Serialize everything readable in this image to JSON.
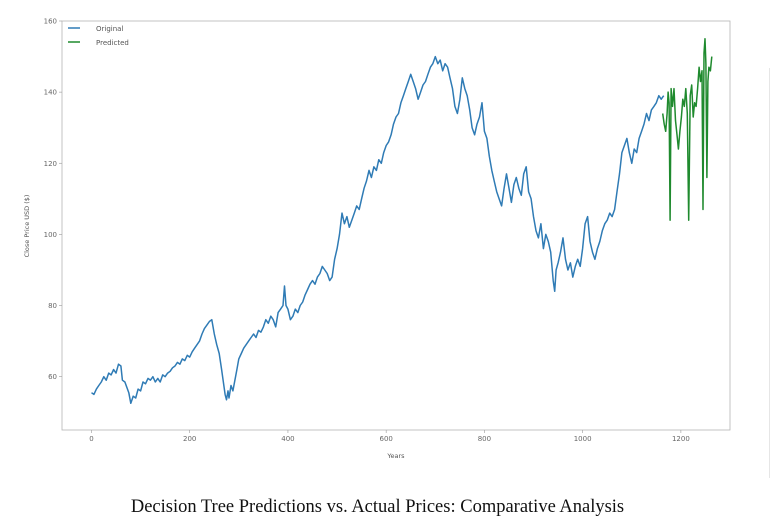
{
  "caption": "Decision Tree Predictions vs. Actual Prices: Comparative Analysis",
  "chart_data": {
    "type": "line",
    "title": "",
    "xlabel": "Years",
    "ylabel": "Close Price USD ($)",
    "xlim": [
      -60,
      1300
    ],
    "ylim": [
      45,
      160
    ],
    "xticks": [
      0,
      200,
      400,
      600,
      800,
      1000,
      1200
    ],
    "yticks": [
      60,
      80,
      100,
      120,
      140,
      160
    ],
    "grid": false,
    "legend_position": "top-left",
    "series": [
      {
        "name": "Original",
        "color": "#2f7bb5",
        "points": [
          [
            0,
            55.5
          ],
          [
            5,
            55.0
          ],
          [
            10,
            56.5
          ],
          [
            15,
            57.5
          ],
          [
            20,
            58.5
          ],
          [
            25,
            60.0
          ],
          [
            30,
            59.0
          ],
          [
            35,
            61.0
          ],
          [
            40,
            60.5
          ],
          [
            45,
            62.0
          ],
          [
            50,
            61.0
          ],
          [
            55,
            63.5
          ],
          [
            60,
            63.0
          ],
          [
            63,
            59.0
          ],
          [
            68,
            58.5
          ],
          [
            72,
            57.0
          ],
          [
            76,
            55.5
          ],
          [
            80,
            52.5
          ],
          [
            85,
            54.5
          ],
          [
            90,
            54.0
          ],
          [
            95,
            56.5
          ],
          [
            100,
            56.0
          ],
          [
            105,
            58.5
          ],
          [
            110,
            58.0
          ],
          [
            115,
            59.5
          ],
          [
            120,
            59.0
          ],
          [
            125,
            60.0
          ],
          [
            130,
            58.5
          ],
          [
            135,
            59.5
          ],
          [
            140,
            58.5
          ],
          [
            145,
            60.5
          ],
          [
            150,
            60.0
          ],
          [
            155,
            61.0
          ],
          [
            160,
            61.5
          ],
          [
            165,
            62.5
          ],
          [
            170,
            63.0
          ],
          [
            175,
            64.0
          ],
          [
            180,
            63.5
          ],
          [
            185,
            65.0
          ],
          [
            190,
            64.5
          ],
          [
            195,
            66.0
          ],
          [
            200,
            65.5
          ],
          [
            205,
            67.0
          ],
          [
            210,
            68.0
          ],
          [
            215,
            69.0
          ],
          [
            220,
            70.0
          ],
          [
            225,
            72.0
          ],
          [
            230,
            73.5
          ],
          [
            235,
            74.5
          ],
          [
            240,
            75.5
          ],
          [
            245,
            76.0
          ],
          [
            250,
            72.0
          ],
          [
            255,
            69.0
          ],
          [
            260,
            66.5
          ],
          [
            265,
            62.0
          ],
          [
            268,
            59.0
          ],
          [
            272,
            55.0
          ],
          [
            275,
            53.5
          ],
          [
            278,
            56.0
          ],
          [
            280,
            54.0
          ],
          [
            284,
            57.5
          ],
          [
            288,
            56.0
          ],
          [
            292,
            59.0
          ],
          [
            296,
            62.0
          ],
          [
            300,
            65.0
          ],
          [
            305,
            66.5
          ],
          [
            310,
            68.0
          ],
          [
            315,
            69.0
          ],
          [
            320,
            70.0
          ],
          [
            325,
            71.0
          ],
          [
            330,
            72.0
          ],
          [
            335,
            71.0
          ],
          [
            340,
            73.0
          ],
          [
            345,
            72.5
          ],
          [
            350,
            74.0
          ],
          [
            355,
            76.0
          ],
          [
            360,
            75.0
          ],
          [
            365,
            77.0
          ],
          [
            370,
            76.0
          ],
          [
            375,
            74.0
          ],
          [
            380,
            78.0
          ],
          [
            385,
            79.0
          ],
          [
            390,
            80.0
          ],
          [
            393,
            85.5
          ],
          [
            396,
            80.0
          ],
          [
            400,
            79.0
          ],
          [
            405,
            76.0
          ],
          [
            410,
            77.0
          ],
          [
            415,
            79.0
          ],
          [
            420,
            78.0
          ],
          [
            425,
            80.0
          ],
          [
            430,
            81.0
          ],
          [
            435,
            83.0
          ],
          [
            440,
            84.5
          ],
          [
            445,
            86.0
          ],
          [
            450,
            87.0
          ],
          [
            455,
            86.0
          ],
          [
            460,
            88.0
          ],
          [
            465,
            89.0
          ],
          [
            470,
            91.0
          ],
          [
            475,
            90.0
          ],
          [
            480,
            89.0
          ],
          [
            485,
            87.0
          ],
          [
            490,
            88.0
          ],
          [
            495,
            93.0
          ],
          [
            500,
            96.0
          ],
          [
            505,
            100.0
          ],
          [
            510,
            106.0
          ],
          [
            515,
            103.0
          ],
          [
            520,
            105.0
          ],
          [
            525,
            102.0
          ],
          [
            530,
            104.0
          ],
          [
            535,
            106.0
          ],
          [
            540,
            108.0
          ],
          [
            545,
            107.0
          ],
          [
            550,
            110.0
          ],
          [
            555,
            113.0
          ],
          [
            560,
            115.0
          ],
          [
            565,
            118.0
          ],
          [
            570,
            116.0
          ],
          [
            575,
            119.0
          ],
          [
            580,
            118.0
          ],
          [
            585,
            121.0
          ],
          [
            590,
            120.0
          ],
          [
            595,
            123.0
          ],
          [
            600,
            125.0
          ],
          [
            605,
            126.0
          ],
          [
            610,
            128.0
          ],
          [
            615,
            131.0
          ],
          [
            620,
            133.0
          ],
          [
            625,
            134.0
          ],
          [
            630,
            137.0
          ],
          [
            635,
            139.0
          ],
          [
            640,
            141.0
          ],
          [
            645,
            143.0
          ],
          [
            650,
            145.0
          ],
          [
            655,
            143.0
          ],
          [
            660,
            141.0
          ],
          [
            665,
            138.0
          ],
          [
            670,
            140.0
          ],
          [
            675,
            142.0
          ],
          [
            680,
            143.0
          ],
          [
            685,
            145.0
          ],
          [
            690,
            147.0
          ],
          [
            695,
            148.0
          ],
          [
            700,
            150.0
          ],
          [
            705,
            148.0
          ],
          [
            710,
            149.0
          ],
          [
            715,
            146.0
          ],
          [
            720,
            148.0
          ],
          [
            725,
            147.0
          ],
          [
            730,
            144.0
          ],
          [
            735,
            141.0
          ],
          [
            740,
            136.0
          ],
          [
            745,
            134.0
          ],
          [
            750,
            138.0
          ],
          [
            755,
            144.0
          ],
          [
            760,
            141.0
          ],
          [
            765,
            139.0
          ],
          [
            770,
            135.0
          ],
          [
            775,
            130.0
          ],
          [
            780,
            128.0
          ],
          [
            785,
            131.0
          ],
          [
            790,
            133.0
          ],
          [
            795,
            137.0
          ],
          [
            800,
            129.0
          ],
          [
            805,
            127.0
          ],
          [
            810,
            122.0
          ],
          [
            815,
            118.0
          ],
          [
            820,
            115.0
          ],
          [
            825,
            112.0
          ],
          [
            830,
            110.0
          ],
          [
            835,
            108.0
          ],
          [
            840,
            113.0
          ],
          [
            845,
            117.0
          ],
          [
            850,
            113.0
          ],
          [
            855,
            109.0
          ],
          [
            860,
            114.0
          ],
          [
            865,
            116.0
          ],
          [
            870,
            113.0
          ],
          [
            875,
            111.0
          ],
          [
            880,
            117.0
          ],
          [
            885,
            119.0
          ],
          [
            890,
            112.0
          ],
          [
            895,
            110.0
          ],
          [
            900,
            105.0
          ],
          [
            905,
            101.0
          ],
          [
            910,
            99.0
          ],
          [
            915,
            103.0
          ],
          [
            920,
            96.0
          ],
          [
            925,
            100.0
          ],
          [
            930,
            98.0
          ],
          [
            935,
            95.0
          ],
          [
            940,
            87.0
          ],
          [
            943,
            84.0
          ],
          [
            946,
            90.0
          ],
          [
            950,
            92.0
          ],
          [
            955,
            95.0
          ],
          [
            960,
            99.0
          ],
          [
            965,
            93.0
          ],
          [
            970,
            90.0
          ],
          [
            975,
            92.0
          ],
          [
            980,
            88.0
          ],
          [
            985,
            91.0
          ],
          [
            990,
            93.0
          ],
          [
            995,
            91.0
          ],
          [
            1000,
            96.0
          ],
          [
            1005,
            103.0
          ],
          [
            1010,
            105.0
          ],
          [
            1015,
            98.0
          ],
          [
            1020,
            95.0
          ],
          [
            1025,
            93.0
          ],
          [
            1030,
            96.0
          ],
          [
            1035,
            98.0
          ],
          [
            1040,
            101.0
          ],
          [
            1045,
            103.0
          ],
          [
            1050,
            104.0
          ],
          [
            1055,
            106.0
          ],
          [
            1060,
            105.0
          ],
          [
            1065,
            107.0
          ],
          [
            1070,
            112.0
          ],
          [
            1075,
            117.0
          ],
          [
            1080,
            123.0
          ],
          [
            1085,
            125.0
          ],
          [
            1090,
            127.0
          ],
          [
            1095,
            123.0
          ],
          [
            1100,
            120.0
          ],
          [
            1105,
            124.0
          ],
          [
            1110,
            123.0
          ],
          [
            1115,
            127.0
          ],
          [
            1120,
            129.0
          ],
          [
            1125,
            131.0
          ],
          [
            1130,
            134.0
          ],
          [
            1135,
            132.0
          ],
          [
            1140,
            135.0
          ],
          [
            1145,
            136.0
          ],
          [
            1150,
            137.0
          ],
          [
            1155,
            139.0
          ],
          [
            1160,
            138.0
          ],
          [
            1165,
            139.0
          ]
        ]
      },
      {
        "name": "Predicted",
        "color": "#1f8a2e",
        "points": [
          [
            1163,
            134.0
          ],
          [
            1166,
            131.0
          ],
          [
            1169,
            129.0
          ],
          [
            1172,
            134.0
          ],
          [
            1174,
            140.0
          ],
          [
            1176,
            137.0
          ],
          [
            1178,
            104.0
          ],
          [
            1180,
            141.0
          ],
          [
            1183,
            136.0
          ],
          [
            1186,
            141.0
          ],
          [
            1189,
            132.0
          ],
          [
            1192,
            128.0
          ],
          [
            1195,
            124.0
          ],
          [
            1198,
            129.0
          ],
          [
            1201,
            133.0
          ],
          [
            1204,
            138.0
          ],
          [
            1207,
            136.0
          ],
          [
            1210,
            141.0
          ],
          [
            1213,
            134.0
          ],
          [
            1216,
            104.0
          ],
          [
            1219,
            139.0
          ],
          [
            1222,
            142.0
          ],
          [
            1225,
            133.0
          ],
          [
            1228,
            137.0
          ],
          [
            1231,
            136.0
          ],
          [
            1234,
            141.0
          ],
          [
            1237,
            147.0
          ],
          [
            1240,
            143.0
          ],
          [
            1243,
            146.0
          ],
          [
            1245,
            107.0
          ],
          [
            1247,
            151.0
          ],
          [
            1249,
            155.0
          ],
          [
            1251,
            148.0
          ],
          [
            1253,
            116.0
          ],
          [
            1255,
            143.0
          ],
          [
            1257,
            147.0
          ],
          [
            1260,
            146.0
          ],
          [
            1263,
            150.0
          ]
        ]
      }
    ]
  }
}
